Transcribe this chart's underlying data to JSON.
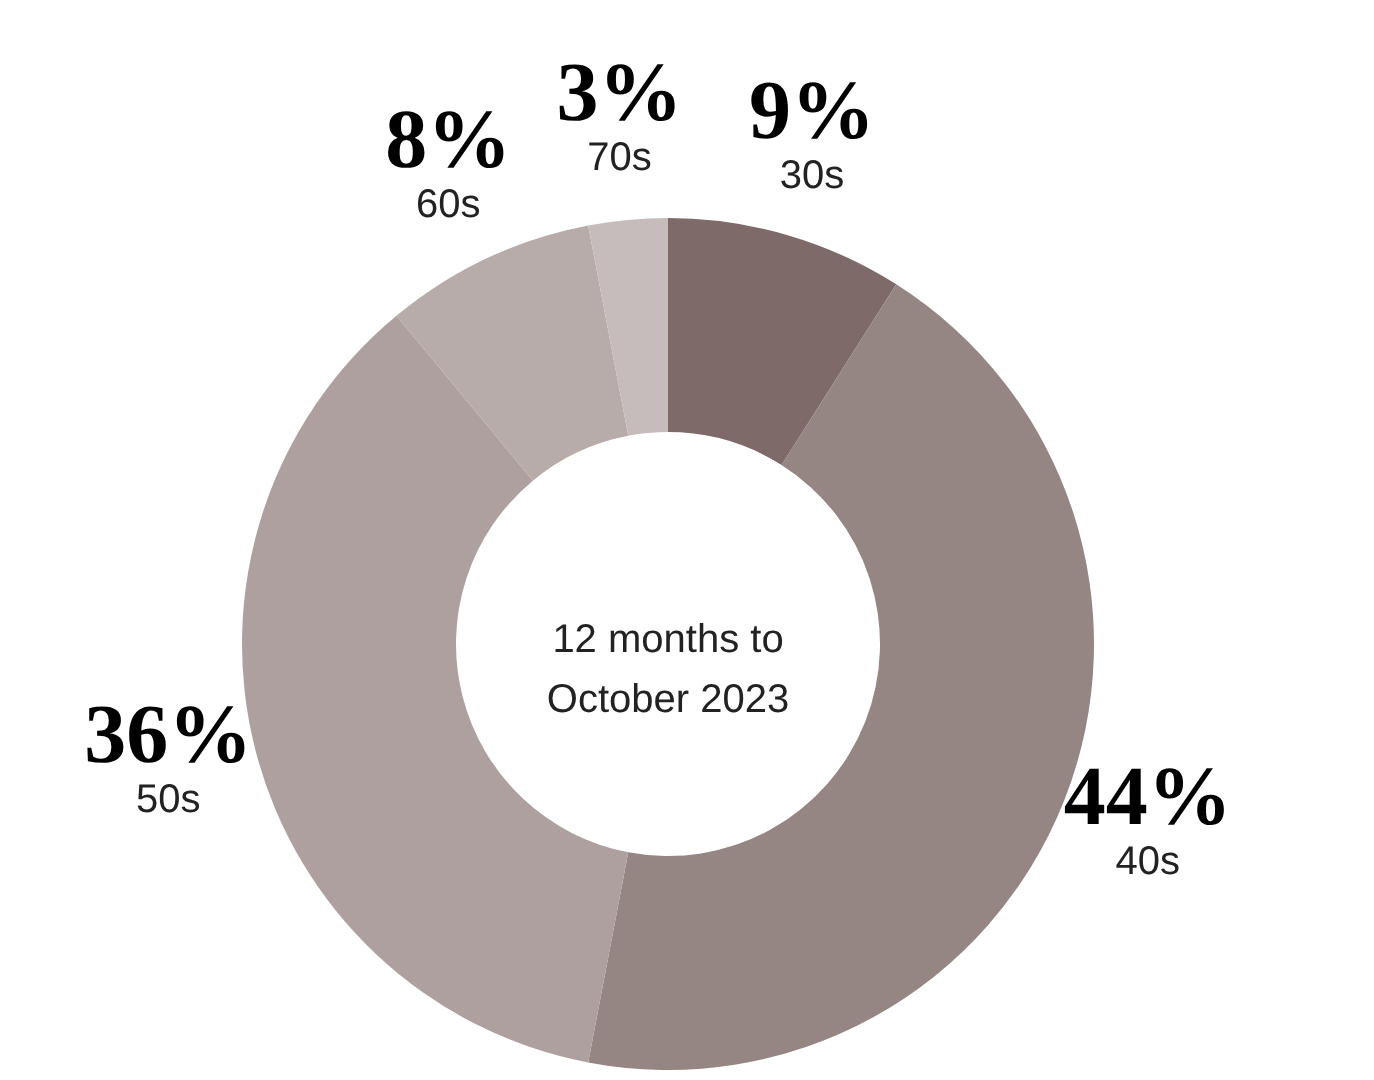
{
  "chart_data": {
    "type": "donut",
    "categories": [
      "30s",
      "40s",
      "50s",
      "60s",
      "70s"
    ],
    "values": [
      9,
      44,
      36,
      8,
      3
    ],
    "colors": [
      "#7d6a69",
      "#958683",
      "#ada09f",
      "#b8acab",
      "#c6bcbb"
    ],
    "value_labels": [
      "9%",
      "44%",
      "36%",
      "8%",
      "3%"
    ],
    "annotations": [
      "12 months to\nOctober 2023"
    ]
  }
}
